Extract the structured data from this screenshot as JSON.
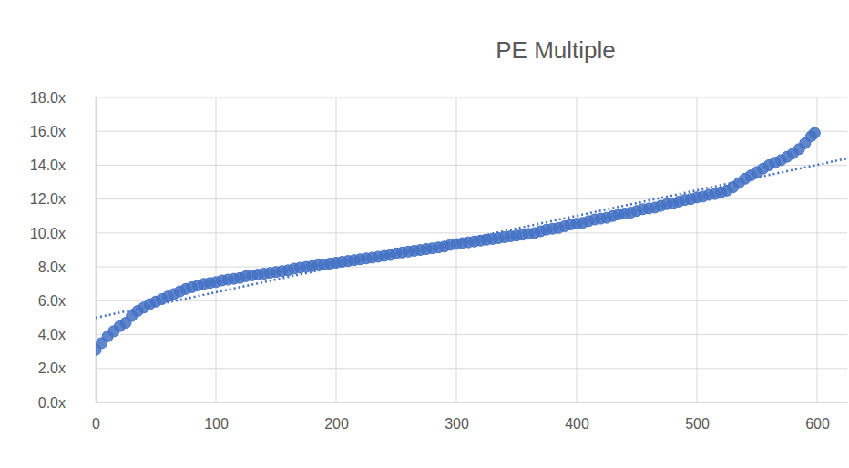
{
  "chart_data": {
    "type": "scatter",
    "title": "PE Multiple",
    "xlim": [
      0,
      625
    ],
    "xticks": [
      0,
      100,
      200,
      300,
      400,
      500,
      600
    ],
    "ylim": [
      0,
      18
    ],
    "yticks": [
      {
        "value": 0,
        "label": "0.0x"
      },
      {
        "value": 2,
        "label": "2.0x"
      },
      {
        "value": 4,
        "label": "4.0x"
      },
      {
        "value": 6,
        "label": "6.0x"
      },
      {
        "value": 8,
        "label": "8.0x"
      },
      {
        "value": 10,
        "label": "10.0x"
      },
      {
        "value": 12,
        "label": "12.0x"
      },
      {
        "value": 14,
        "label": "14.0x"
      },
      {
        "value": 16,
        "label": "16.0x"
      },
      {
        "value": 18,
        "label": "18.0x"
      }
    ],
    "grid": true,
    "series": [
      {
        "type": "scatter",
        "marker": "circle",
        "color": "#4472c4",
        "x": [
          0,
          5,
          10,
          15,
          20,
          25,
          30,
          35,
          40,
          45,
          50,
          55,
          60,
          65,
          70,
          75,
          80,
          85,
          90,
          95,
          100,
          105,
          110,
          115,
          120,
          125,
          130,
          135,
          140,
          145,
          150,
          155,
          160,
          165,
          170,
          175,
          180,
          185,
          190,
          195,
          200,
          205,
          210,
          215,
          220,
          225,
          230,
          235,
          240,
          245,
          250,
          255,
          260,
          265,
          270,
          275,
          280,
          285,
          290,
          295,
          300,
          305,
          310,
          315,
          320,
          325,
          330,
          335,
          340,
          345,
          350,
          355,
          360,
          365,
          370,
          375,
          380,
          385,
          390,
          395,
          400,
          405,
          410,
          415,
          420,
          425,
          430,
          435,
          440,
          445,
          450,
          455,
          460,
          465,
          470,
          475,
          480,
          485,
          490,
          495,
          500,
          505,
          510,
          515,
          520,
          525,
          530,
          535,
          540,
          545,
          550,
          555,
          560,
          565,
          570,
          575,
          580,
          585,
          590,
          595,
          598
        ],
        "values": [
          3.1,
          3.5,
          3.9,
          4.2,
          4.5,
          4.7,
          5.1,
          5.4,
          5.6,
          5.8,
          5.95,
          6.1,
          6.25,
          6.4,
          6.55,
          6.7,
          6.8,
          6.9,
          7.0,
          7.05,
          7.1,
          7.2,
          7.25,
          7.3,
          7.35,
          7.45,
          7.5,
          7.55,
          7.6,
          7.65,
          7.7,
          7.75,
          7.8,
          7.9,
          7.95,
          8.0,
          8.05,
          8.1,
          8.15,
          8.2,
          8.25,
          8.3,
          8.35,
          8.4,
          8.45,
          8.5,
          8.55,
          8.6,
          8.65,
          8.7,
          8.8,
          8.85,
          8.9,
          8.95,
          9.0,
          9.05,
          9.1,
          9.15,
          9.2,
          9.3,
          9.35,
          9.4,
          9.45,
          9.5,
          9.55,
          9.6,
          9.65,
          9.7,
          9.75,
          9.8,
          9.85,
          9.9,
          9.95,
          10.0,
          10.1,
          10.2,
          10.25,
          10.3,
          10.4,
          10.5,
          10.55,
          10.6,
          10.7,
          10.8,
          10.85,
          10.9,
          11.0,
          11.1,
          11.15,
          11.2,
          11.3,
          11.4,
          11.45,
          11.5,
          11.6,
          11.7,
          11.75,
          11.85,
          11.95,
          12.0,
          12.1,
          12.15,
          12.25,
          12.3,
          12.4,
          12.5,
          12.7,
          12.95,
          13.2,
          13.4,
          13.6,
          13.8,
          14.0,
          14.15,
          14.3,
          14.5,
          14.7,
          14.95,
          15.3,
          15.7,
          15.9
        ]
      },
      {
        "type": "line",
        "line_style": "dotted",
        "color": "#4472c4",
        "x": [
          0,
          625
        ],
        "values": [
          5.0,
          14.4
        ]
      }
    ]
  }
}
